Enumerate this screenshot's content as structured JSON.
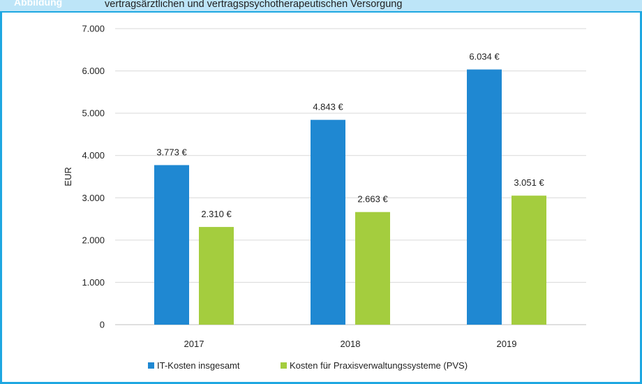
{
  "header": {
    "label": "Abbildung",
    "title": "vertragsärztlichen und vertragspsychotherapeutischen Versorgung"
  },
  "chart_data": {
    "type": "bar",
    "categories": [
      "2017",
      "2018",
      "2019"
    ],
    "series": [
      {
        "name": "IT-Kosten insgesamt",
        "values": [
          3773,
          4843,
          6034
        ],
        "labels": [
          "3.773 €",
          "4.843 €",
          "6.034 €"
        ],
        "color": "#1f88d2"
      },
      {
        "name": "Kosten für Praxisverwaltungssysteme (PVS)",
        "values": [
          2310,
          2663,
          3051
        ],
        "labels": [
          "2.310 €",
          "2.663 €",
          "3.051 €"
        ],
        "color": "#a4cd3e"
      }
    ],
    "ylabel": "EUR",
    "ylim": [
      0,
      7000
    ],
    "yticks": [
      0,
      1000,
      2000,
      3000,
      4000,
      5000,
      6000,
      7000
    ],
    "ytick_labels": [
      "0",
      "1.000",
      "2.000",
      "3.000",
      "4.000",
      "5.000",
      "6.000",
      "7.000"
    ],
    "grid": true,
    "legend_position": "bottom"
  }
}
